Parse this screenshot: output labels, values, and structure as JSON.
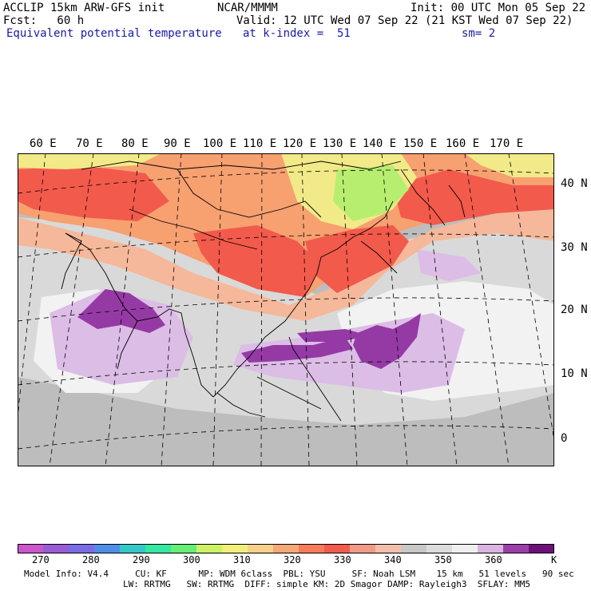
{
  "header": {
    "model": "ACCLIP 15km ARW-GFS init",
    "center": "NCAR/MMMM",
    "init": "Init: 00 UTC Mon 05 Sep 22",
    "fcst": "Fcst:   60 h",
    "valid": "Valid: 12 UTC Wed 07 Sep 22 (21 KST Wed 07 Sep 22)",
    "field": "Equivalent potential temperature",
    "level": "at k-index =  51",
    "smooth": "sm= 2"
  },
  "lon_labels": [
    "60 E",
    "70 E",
    "80 E",
    "90 E",
    "100 E",
    "110 E",
    "120 E",
    "130 E",
    "140 E",
    "150 E",
    "160 E",
    "170 E"
  ],
  "lat_labels": [
    "40 N",
    "30 N",
    "20 N",
    "10 N",
    "0"
  ],
  "colorbar": {
    "labels": [
      "270",
      "280",
      "290",
      "300",
      "310",
      "320",
      "330",
      "340",
      "350",
      "360"
    ],
    "unit": "K",
    "colors": [
      "#cc55cc",
      "#9a5bd6",
      "#7a6be8",
      "#4f8ee8",
      "#33c8c8",
      "#33e8a0",
      "#66ee77",
      "#ccf266",
      "#f2ee77",
      "#f7d08a",
      "#f7a877",
      "#f77b5a",
      "#f25a4c",
      "#f29a88",
      "#f2c0aa",
      "#c8c8c8",
      "#dcdcdc",
      "#f0f0f0",
      "#d9b4e2",
      "#9b3fa8",
      "#6e0f7a"
    ]
  },
  "map_colors": {
    "ocean_grey": "#bdbdbd",
    "light_grey": "#d9d9d9",
    "white": "#f2f2f2",
    "red": "#f25a4c",
    "orange": "#f7a070",
    "salmon": "#f5b89a",
    "yellow": "#f2e988",
    "green": "#b8ee70",
    "lavender": "#dcbde6",
    "purple": "#953aa5"
  },
  "footer": {
    "line1": "Model Info: V4.4     CU: KF      MP: WDM 6class  PBL: YSU     SF: Noah LSM    15 km   51 levels   90 sec",
    "line2": "LW: RRTMG   SW: RRTMG  DIFF: simple KM: 2D Smagor DAMP: Rayleigh3  SFLAY: MM5"
  }
}
